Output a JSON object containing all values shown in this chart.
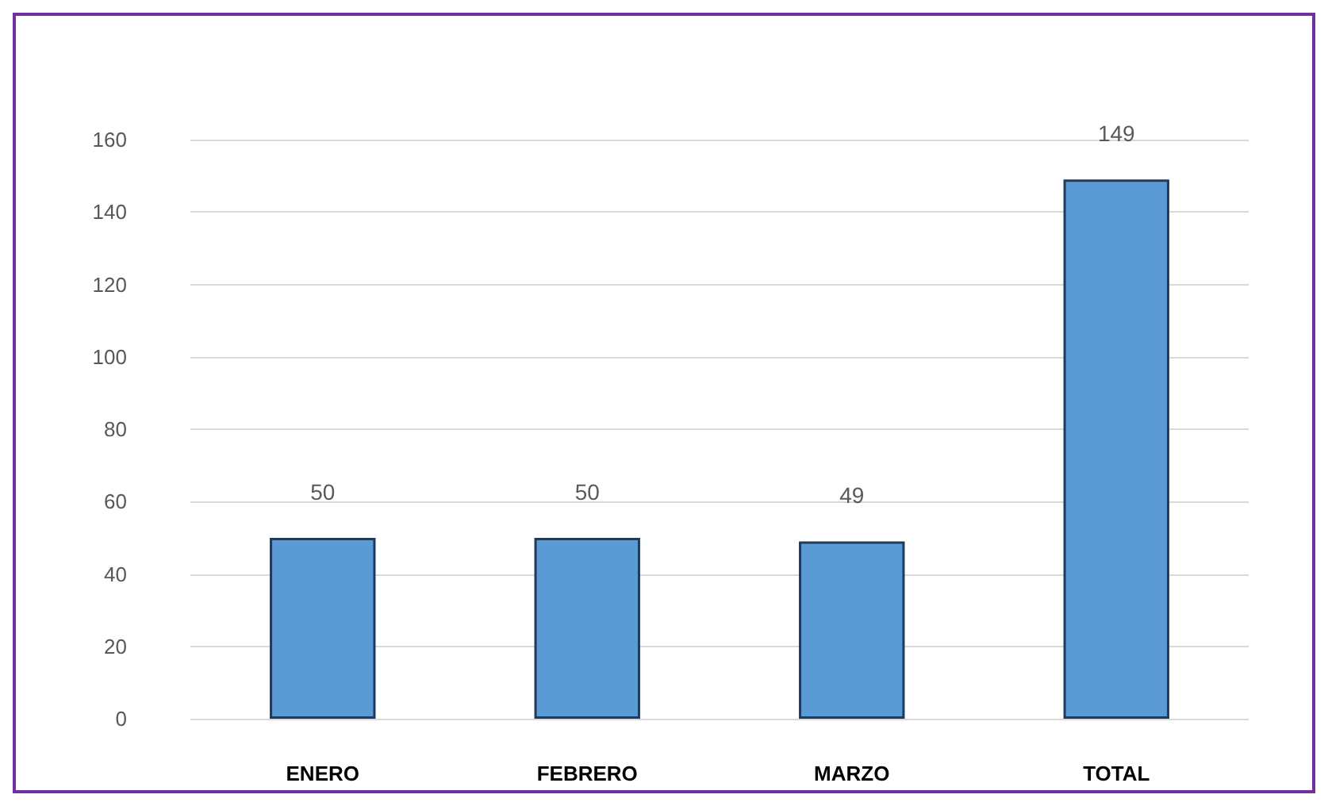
{
  "chart_data": {
    "type": "bar",
    "categories": [
      "ENERO",
      "FEBRERO",
      "MARZO",
      "TOTAL"
    ],
    "values": [
      50,
      50,
      49,
      149
    ],
    "color": "#5b9bd5",
    "ylim": [
      0,
      160
    ],
    "yticks": [
      0,
      20,
      40,
      60,
      80,
      100,
      120,
      140,
      160
    ],
    "grid": "y",
    "data_labels": true
  }
}
